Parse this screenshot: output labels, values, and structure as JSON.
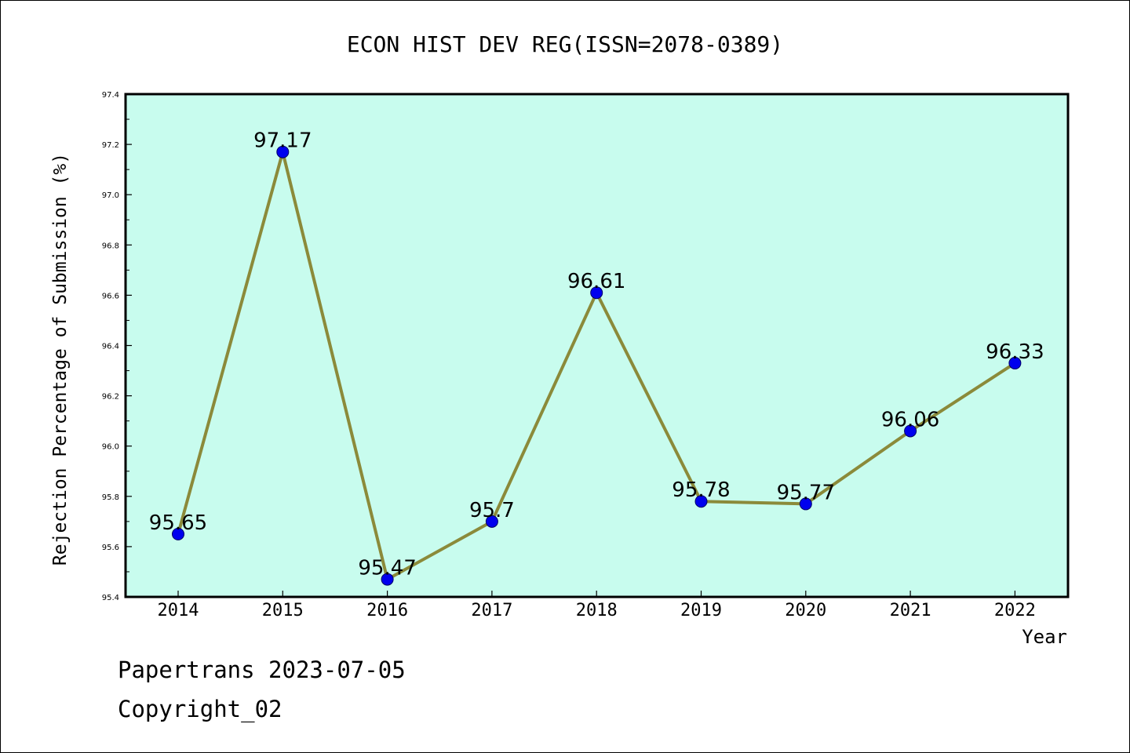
{
  "chart_data": {
    "type": "line",
    "title": "ECON HIST DEV REG(ISSN=2078-0389)",
    "xlabel": "Year",
    "ylabel": "Rejection Percentage of Submission (%)",
    "categories": [
      "2014",
      "2015",
      "2016",
      "2017",
      "2018",
      "2019",
      "2020",
      "2021",
      "2022"
    ],
    "series": [
      {
        "values": [
          95.65,
          97.17,
          95.47,
          95.7,
          96.61,
          95.78,
          95.77,
          96.06,
          96.33
        ]
      }
    ],
    "data_labels": [
      "95.65",
      "97.17",
      "95.47",
      "95.7",
      "96.61",
      "95.78",
      "95.77",
      "96.06",
      "96.33"
    ],
    "ylim": [
      95.4,
      97.4
    ],
    "yticks": [
      "95.4",
      "95.6",
      "95.8",
      "96.0",
      "96.2",
      "96.4",
      "96.6",
      "96.8",
      "97.0",
      "97.2",
      "97.4"
    ],
    "grid": false,
    "colors": {
      "plot_background": "#c8fcee",
      "line": "#8b8a3a",
      "marker": "#0000ee"
    }
  },
  "footer": {
    "line1": "Papertrans 2023-07-05",
    "line2": "Copyright_02"
  }
}
